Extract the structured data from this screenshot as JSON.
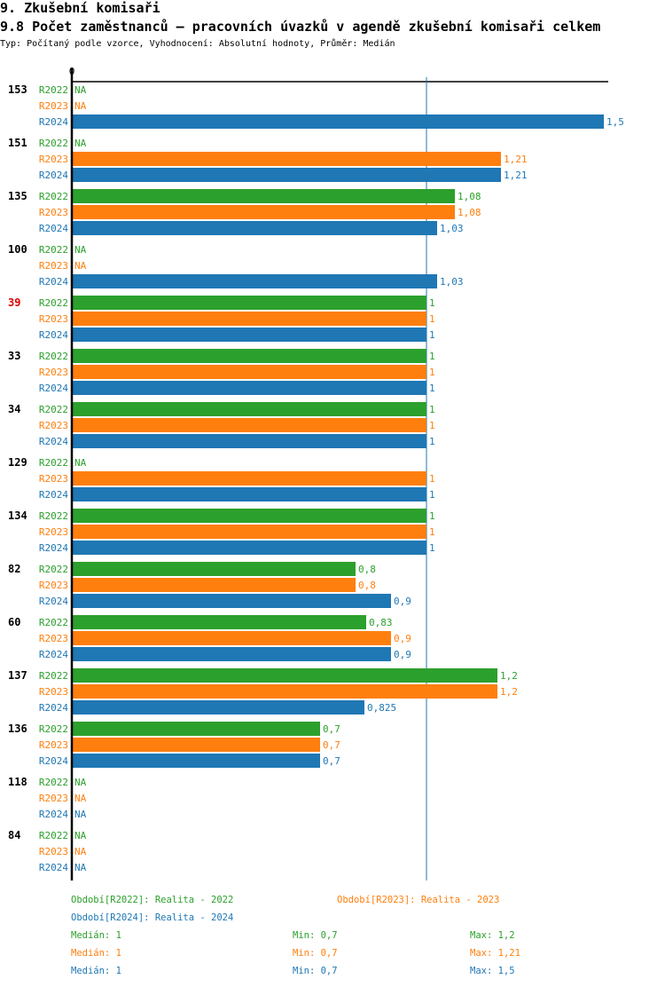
{
  "header": {
    "section_title": "9. Zkušební komisaři",
    "chart_title": "9.8 Počet zaměstnanců – pracovních úvazků v agendě zkušební komisaři celkem",
    "subtitle": "Typ: Počítaný podle vzorce, Vyhodnocení: Absolutní hodnoty, Průměr: Medián"
  },
  "colors": {
    "R2022": "#2ca02c",
    "R2023": "#ff7f0e",
    "R2024": "#1f77b4",
    "highlight": "#dd0000",
    "axis": "#000000"
  },
  "chart_data": {
    "type": "bar",
    "orientation": "horizontal",
    "title": "9.8 Počet zaměstnanců – pracovních úvazků v agendě zkušební komisaři celkem",
    "xlabel": "",
    "ylabel": "",
    "xlim": [
      0,
      1.5
    ],
    "x_ticks": [
      "0"
    ],
    "reference_line": {
      "label": "Medián",
      "value": 1
    },
    "grid": false,
    "series_names": [
      "R2022",
      "R2023",
      "R2024"
    ],
    "na_label": "NA",
    "categories": [
      "153",
      "151",
      "135",
      "100",
      "39",
      "33",
      "34",
      "129",
      "134",
      "82",
      "60",
      "137",
      "136",
      "118",
      "84"
    ],
    "highlighted_category": "39",
    "groups": [
      {
        "id": "153",
        "values": [
          null,
          null,
          1.5
        ],
        "labels": [
          "NA",
          "NA",
          "1,5"
        ]
      },
      {
        "id": "151",
        "values": [
          null,
          1.21,
          1.21
        ],
        "labels": [
          "NA",
          "1,21",
          "1,21"
        ]
      },
      {
        "id": "135",
        "values": [
          1.08,
          1.08,
          1.03
        ],
        "labels": [
          "1,08",
          "1,08",
          "1,03"
        ]
      },
      {
        "id": "100",
        "values": [
          null,
          null,
          1.03
        ],
        "labels": [
          "NA",
          "NA",
          "1,03"
        ]
      },
      {
        "id": "39",
        "values": [
          1,
          1,
          1
        ],
        "labels": [
          "1",
          "1",
          "1"
        ]
      },
      {
        "id": "33",
        "values": [
          1,
          1,
          1
        ],
        "labels": [
          "1",
          "1",
          "1"
        ]
      },
      {
        "id": "34",
        "values": [
          1,
          1,
          1
        ],
        "labels": [
          "1",
          "1",
          "1"
        ]
      },
      {
        "id": "129",
        "values": [
          null,
          1,
          1
        ],
        "labels": [
          "NA",
          "1",
          "1"
        ]
      },
      {
        "id": "134",
        "values": [
          1,
          1,
          1
        ],
        "labels": [
          "1",
          "1",
          "1"
        ]
      },
      {
        "id": "82",
        "values": [
          0.8,
          0.8,
          0.9
        ],
        "labels": [
          "0,8",
          "0,8",
          "0,9"
        ]
      },
      {
        "id": "60",
        "values": [
          0.83,
          0.9,
          0.9
        ],
        "labels": [
          "0,83",
          "0,9",
          "0,9"
        ]
      },
      {
        "id": "137",
        "values": [
          1.2,
          1.2,
          0.825
        ],
        "labels": [
          "1,2",
          "1,2",
          "0,825"
        ]
      },
      {
        "id": "136",
        "values": [
          0.7,
          0.7,
          0.7
        ],
        "labels": [
          "0,7",
          "0,7",
          "0,7"
        ]
      },
      {
        "id": "118",
        "values": [
          null,
          null,
          null
        ],
        "labels": [
          "NA",
          "NA",
          "NA"
        ]
      },
      {
        "id": "84",
        "values": [
          null,
          null,
          null
        ],
        "labels": [
          "NA",
          "NA",
          "NA"
        ]
      }
    ],
    "legend": {
      "position": "bottom",
      "entries": [
        {
          "series": "R2022",
          "text": "Období[R2022]: Realita - 2022"
        },
        {
          "series": "R2023",
          "text": "Období[R2023]: Realita - 2023"
        },
        {
          "series": "R2024",
          "text": "Období[R2024]: Realita - 2024"
        }
      ]
    },
    "stats": [
      {
        "series": "R2022",
        "median": "Medián: 1",
        "min": "Min: 0,7",
        "max": "Max: 1,2"
      },
      {
        "series": "R2023",
        "median": "Medián: 1",
        "min": "Min: 0,7",
        "max": "Max: 1,21"
      },
      {
        "series": "R2024",
        "median": "Medián: 1",
        "min": "Min: 0,7",
        "max": "Max: 1,5"
      }
    ]
  }
}
